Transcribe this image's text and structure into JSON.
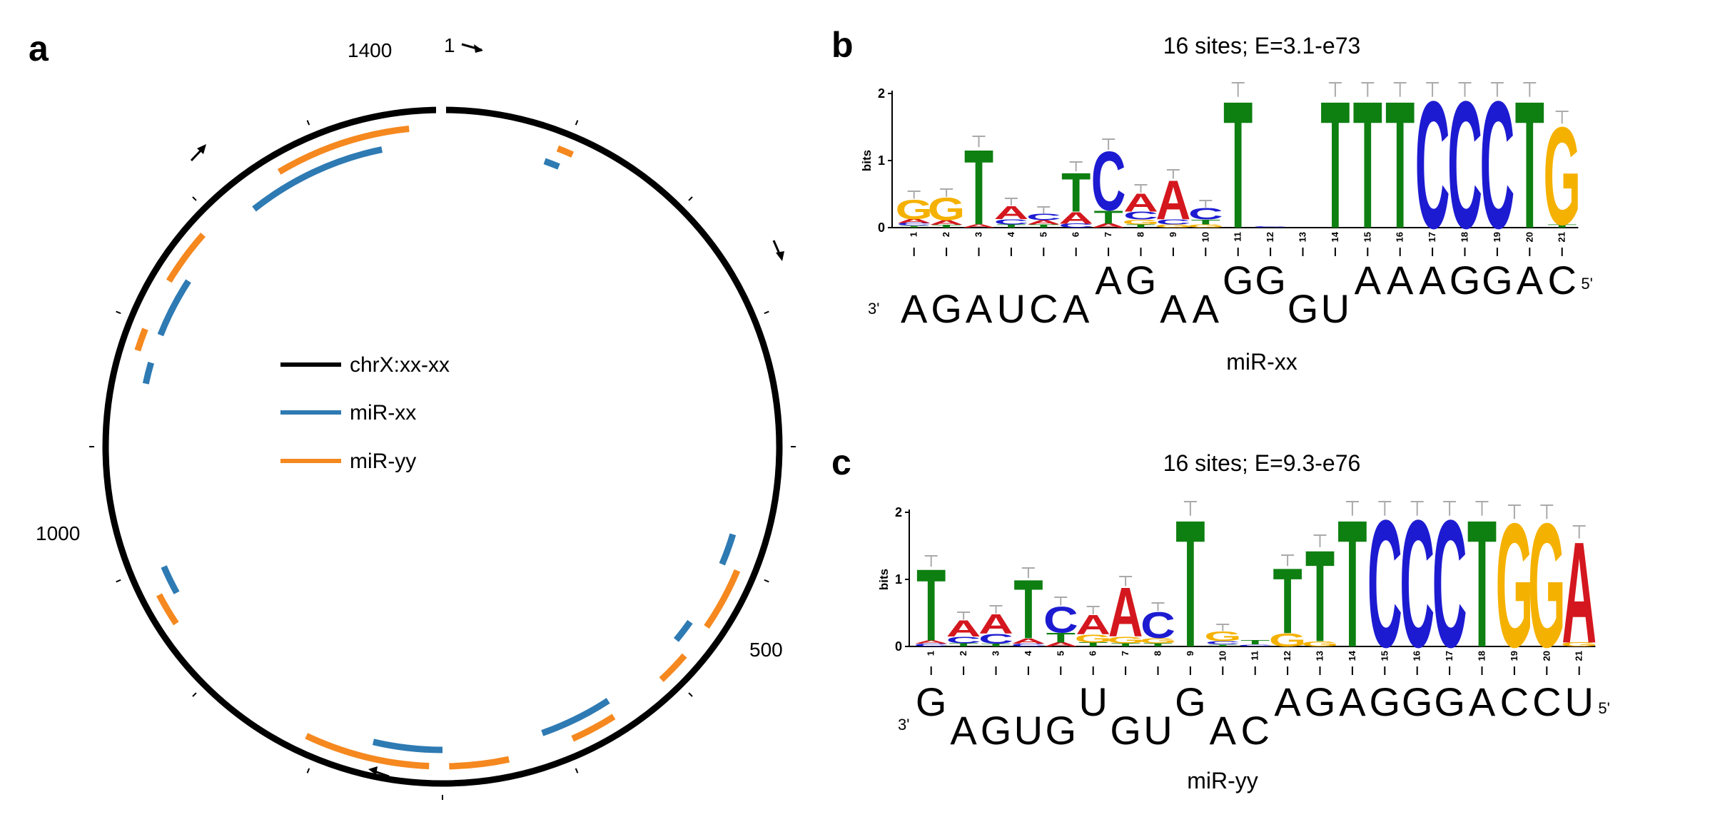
{
  "panels": {
    "a": {
      "letter": "a",
      "labels": {
        "pos_1": "1",
        "pos_500": "500",
        "pos_1000": "1000",
        "pos_1400": "1400"
      },
      "legend": [
        {
          "label": "chrX:xx-xx",
          "color": "#000000"
        },
        {
          "label": "miR-xx",
          "color": "#2e7ab3"
        },
        {
          "label": "miR-yy",
          "color": "#f5881f"
        }
      ],
      "genome_length": 1500,
      "sites": {
        "mir_xx": [
          [
            1340,
            1452
          ],
          [
            1215,
            1263
          ],
          [
            1175,
            1192
          ],
          [
            1005,
            1028
          ],
          [
            750,
            805
          ],
          [
            612,
            670
          ],
          [
            522,
            540
          ],
          [
            445,
            470
          ],
          [
            82,
            94
          ]
        ],
        "mir_yy": [
          [
            1372,
            1475
          ],
          [
            1255,
            1298
          ],
          [
            1198,
            1215
          ],
          [
            985,
            1010
          ],
          [
            760,
            855
          ],
          [
            700,
            745
          ],
          [
            615,
            650
          ],
          [
            545,
            570
          ],
          [
            470,
            518
          ],
          [
            88,
            100
          ]
        ]
      }
    },
    "b": {
      "letter": "b",
      "title": "16 sites; E=3.1-e73",
      "y_axis_label": "bits",
      "y_ticks": [
        "0",
        "1",
        "2"
      ],
      "positions": [
        "1",
        "2",
        "3",
        "4",
        "5",
        "6",
        "7",
        "8",
        "9",
        "10",
        "11",
        "12",
        "13",
        "14",
        "15",
        "16",
        "17",
        "18",
        "19",
        "20",
        "21"
      ],
      "mirna_end_3": "3'",
      "mirna_end_5": "5'",
      "mirna_bases": [
        {
          "base": "A",
          "row": "low"
        },
        {
          "base": "G",
          "row": "low"
        },
        {
          "base": "A",
          "row": "low"
        },
        {
          "base": "U",
          "row": "low"
        },
        {
          "base": "C",
          "row": "low"
        },
        {
          "base": "A",
          "row": "low"
        },
        {
          "base": "A",
          "row": "high",
          "col": 6
        },
        {
          "base": "G",
          "row": "high",
          "col": 7
        },
        {
          "base": "A",
          "row": "low",
          "col": 8
        },
        {
          "base": "A",
          "row": "low",
          "col": 9
        },
        {
          "base": "G",
          "row": "high",
          "col": 10
        },
        {
          "base": "G",
          "row": "high",
          "col": 11
        },
        {
          "base": "G",
          "row": "low",
          "col": 12
        },
        {
          "base": "U",
          "row": "low",
          "col": 13
        },
        {
          "base": "A",
          "row": "high",
          "col": 14
        },
        {
          "base": "A",
          "row": "high",
          "col": 15
        },
        {
          "base": "A",
          "row": "high",
          "col": 16
        },
        {
          "base": "G",
          "row": "high",
          "col": 17
        },
        {
          "base": "G",
          "row": "high",
          "col": 18
        },
        {
          "base": "A",
          "row": "high",
          "col": 19
        },
        {
          "base": "C",
          "row": "high",
          "col": 20
        }
      ],
      "mirna_name": "miR-xx",
      "logo": [
        [
          [
            "G",
            0.3
          ],
          [
            "A",
            0.06
          ],
          [
            "C",
            0.04
          ],
          [
            "T",
            0.03
          ]
        ],
        [
          [
            "G",
            0.35
          ],
          [
            "A",
            0.07
          ],
          [
            "T",
            0.04
          ]
        ],
        [
          [
            "T",
            1.15
          ],
          [
            "A",
            0.05
          ]
        ],
        [
          [
            "A",
            0.2
          ],
          [
            "C",
            0.08
          ],
          [
            "T",
            0.05
          ]
        ],
        [
          [
            "C",
            0.1
          ],
          [
            "A",
            0.06
          ],
          [
            "T",
            0.05
          ]
        ],
        [
          [
            "T",
            0.6
          ],
          [
            "A",
            0.18
          ],
          [
            "C",
            0.06
          ]
        ],
        [
          [
            "C",
            0.9
          ],
          [
            "T",
            0.2
          ],
          [
            "A",
            0.06
          ]
        ],
        [
          [
            "A",
            0.28
          ],
          [
            "C",
            0.12
          ],
          [
            "G",
            0.07
          ],
          [
            "T",
            0.05
          ]
        ],
        [
          [
            "A",
            0.6
          ],
          [
            "C",
            0.08
          ],
          [
            "G",
            0.05
          ]
        ],
        [
          [
            "C",
            0.18
          ],
          [
            "T",
            0.07
          ],
          [
            "G",
            0.05
          ]
        ],
        [
          [
            "T",
            1.95
          ]
        ],
        [
          [
            "C",
            0.02
          ]
        ],
        [],
        [
          [
            "T",
            1.95
          ]
        ],
        [
          [
            "T",
            1.95
          ]
        ],
        [
          [
            "T",
            1.95
          ]
        ],
        [
          [
            "C",
            1.95
          ]
        ],
        [
          [
            "C",
            1.95
          ]
        ],
        [
          [
            "C",
            1.95
          ]
        ],
        [
          [
            "T",
            1.95
          ]
        ],
        [
          [
            "G",
            1.5
          ],
          [
            "T",
            0.05
          ]
        ]
      ]
    },
    "c": {
      "letter": "c",
      "title": "16 sites; E=9.3-e76",
      "y_axis_label": "bits",
      "y_ticks": [
        "0",
        "1",
        "2"
      ],
      "positions": [
        "1",
        "2",
        "3",
        "4",
        "5",
        "6",
        "7",
        "8",
        "9",
        "10",
        "11",
        "12",
        "13",
        "14",
        "15",
        "16",
        "17",
        "18",
        "19",
        "20",
        "21"
      ],
      "mirna_end_3": "3'",
      "mirna_end_5": "5'",
      "mirna_bases": [
        {
          "base": "G",
          "row": "high",
          "col": 0
        },
        {
          "base": "A",
          "row": "low",
          "col": 1
        },
        {
          "base": "G",
          "row": "low",
          "col": 2
        },
        {
          "base": "U",
          "row": "low",
          "col": 3
        },
        {
          "base": "G",
          "row": "low",
          "col": 4
        },
        {
          "base": "U",
          "row": "high",
          "col": 5
        },
        {
          "base": "G",
          "row": "low",
          "col": 6
        },
        {
          "base": "U",
          "row": "low",
          "col": 7
        },
        {
          "base": "G",
          "row": "high",
          "col": 8
        },
        {
          "base": "A",
          "row": "low",
          "col": 9
        },
        {
          "base": "C",
          "row": "low",
          "col": 10
        },
        {
          "base": "A",
          "row": "high",
          "col": 11
        },
        {
          "base": "G",
          "row": "high",
          "col": 12
        },
        {
          "base": "A",
          "row": "high",
          "col": 13
        },
        {
          "base": "G",
          "row": "high",
          "col": 14
        },
        {
          "base": "G",
          "row": "high",
          "col": 15
        },
        {
          "base": "G",
          "row": "high",
          "col": 16
        },
        {
          "base": "A",
          "row": "high",
          "col": 17
        },
        {
          "base": "C",
          "row": "high",
          "col": 18
        },
        {
          "base": "C",
          "row": "high",
          "col": 19
        },
        {
          "base": "U",
          "row": "high",
          "col": 20
        }
      ],
      "mirna_name": "miR-yy",
      "logo": [
        [
          [
            "T",
            1.1
          ],
          [
            "A",
            0.05
          ],
          [
            "C",
            0.04
          ]
        ],
        [
          [
            "A",
            0.25
          ],
          [
            "C",
            0.1
          ],
          [
            "T",
            0.05
          ]
        ],
        [
          [
            "A",
            0.3
          ],
          [
            "C",
            0.15
          ],
          [
            "T",
            0.04
          ]
        ],
        [
          [
            "T",
            0.9
          ],
          [
            "A",
            0.08
          ],
          [
            "C",
            0.04
          ]
        ],
        [
          [
            "C",
            0.4
          ],
          [
            "T",
            0.15
          ],
          [
            "A",
            0.06
          ]
        ],
        [
          [
            "A",
            0.3
          ],
          [
            "G",
            0.12
          ],
          [
            "T",
            0.06
          ]
        ],
        [
          [
            "A",
            0.75
          ],
          [
            "G",
            0.1
          ],
          [
            "T",
            0.05
          ]
        ],
        [
          [
            "C",
            0.4
          ],
          [
            "G",
            0.08
          ],
          [
            "T",
            0.05
          ]
        ],
        [
          [
            "T",
            1.95
          ]
        ],
        [
          [
            "G",
            0.15
          ],
          [
            "C",
            0.05
          ],
          [
            "T",
            0.03
          ]
        ],
        [
          [
            "T",
            0.06
          ],
          [
            "C",
            0.03
          ]
        ],
        [
          [
            "T",
            1.0
          ],
          [
            "G",
            0.2
          ]
        ],
        [
          [
            "T",
            1.4
          ],
          [
            "G",
            0.08
          ]
        ],
        [
          [
            "T",
            1.95
          ]
        ],
        [
          [
            "C",
            1.95
          ]
        ],
        [
          [
            "C",
            1.95
          ]
        ],
        [
          [
            "C",
            1.95
          ]
        ],
        [
          [
            "T",
            1.95
          ]
        ],
        [
          [
            "G",
            1.9
          ]
        ],
        [
          [
            "G",
            1.9
          ]
        ],
        [
          [
            "A",
            1.55
          ],
          [
            "G",
            0.06
          ]
        ]
      ]
    }
  },
  "colors": {
    "A": "#d4171e",
    "C": "#1d1bd1",
    "G": "#f5b100",
    "T": "#0e7f11",
    "circle": "#000000",
    "mir_xx": "#2e7ab3",
    "mir_yy": "#f5881f"
  }
}
